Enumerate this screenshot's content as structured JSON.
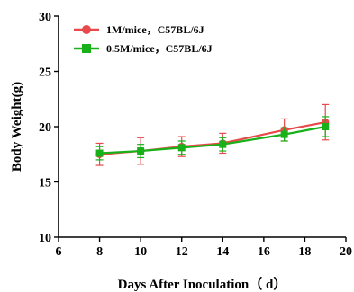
{
  "chart_data": {
    "type": "line",
    "xlabel": "Days After Inoculation（ d）",
    "ylabel": "Body Weight(g)",
    "xlim": [
      6,
      20
    ],
    "ylim": [
      10,
      30
    ],
    "xticks": [
      6,
      8,
      10,
      12,
      14,
      16,
      18,
      20
    ],
    "yticks": [
      10,
      15,
      20,
      25,
      30
    ],
    "grid": false,
    "legend_position": "top-left",
    "series": [
      {
        "name": "1M/mice，C57BL/6J",
        "color": "#e8494b",
        "marker": "circle",
        "x": [
          8,
          10,
          12,
          14,
          17,
          19
        ],
        "y": [
          17.5,
          17.8,
          18.2,
          18.5,
          19.7,
          20.4
        ],
        "error": [
          1.0,
          1.2,
          0.9,
          0.9,
          1.0,
          1.6
        ]
      },
      {
        "name": "0.5M/mice，C57BL/6J",
        "color": "#19b119",
        "marker": "square",
        "x": [
          8,
          10,
          12,
          14,
          17,
          19
        ],
        "y": [
          17.6,
          17.8,
          18.1,
          18.4,
          19.3,
          20.0
        ],
        "error": [
          0.6,
          0.6,
          0.6,
          0.6,
          0.6,
          0.9
        ]
      }
    ]
  }
}
